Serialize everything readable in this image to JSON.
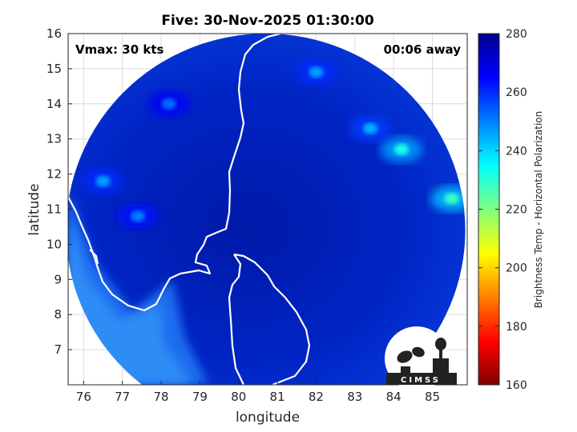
{
  "chart_data": {
    "type": "heatmap",
    "title": "Five: 30-Nov-2025 01:30:00",
    "xlabel": "longitude",
    "ylabel": "latitude",
    "xlim": [
      75.6,
      85.9
    ],
    "ylim": [
      6.0,
      16.0
    ],
    "xticks": [
      "76",
      "77",
      "78",
      "79",
      "80",
      "81",
      "82",
      "83",
      "84",
      "85"
    ],
    "yticks": [
      "7",
      "8",
      "9",
      "10",
      "11",
      "12",
      "13",
      "14",
      "15",
      "16"
    ],
    "grid": true,
    "annotation_left": "Vmax: 30 kts",
    "annotation_right": "00:06 away",
    "colorbar": {
      "label": "Brightness Temp - Horizontal Polarization",
      "min": 160,
      "max": 280,
      "ticks": [
        "160",
        "180",
        "200",
        "220",
        "240",
        "260",
        "280"
      ],
      "colormap": [
        "#800000",
        "#ff0000",
        "#ff8000",
        "#ffff00",
        "#80ff80",
        "#00ffff",
        "#0080ff",
        "#0000ff",
        "#00008f"
      ]
    },
    "field": {
      "background_value": 266,
      "swath_center": [
        80.7,
        10.4
      ],
      "swath_radius_deg": [
        5.15,
        5.6
      ],
      "features": [
        {
          "name": "cold-cloud-1",
          "lon": 84.2,
          "lat": 12.7,
          "value": 232
        },
        {
          "name": "cold-cloud-2",
          "lon": 85.5,
          "lat": 11.3,
          "value": 228
        },
        {
          "name": "cold-cloud-3",
          "lon": 83.4,
          "lat": 13.3,
          "value": 244
        },
        {
          "name": "cold-cloud-4",
          "lon": 82.0,
          "lat": 14.9,
          "value": 246
        },
        {
          "name": "cold-cloud-5",
          "lon": 76.5,
          "lat": 11.8,
          "value": 246
        },
        {
          "name": "cold-cloud-6",
          "lon": 77.4,
          "lat": 10.8,
          "value": 250
        },
        {
          "name": "cold-cloud-7",
          "lon": 78.2,
          "lat": 14.0,
          "value": 252
        }
      ]
    }
  },
  "logo": {
    "text": "CIMSS",
    "icon": "cimss-logo-icon"
  }
}
